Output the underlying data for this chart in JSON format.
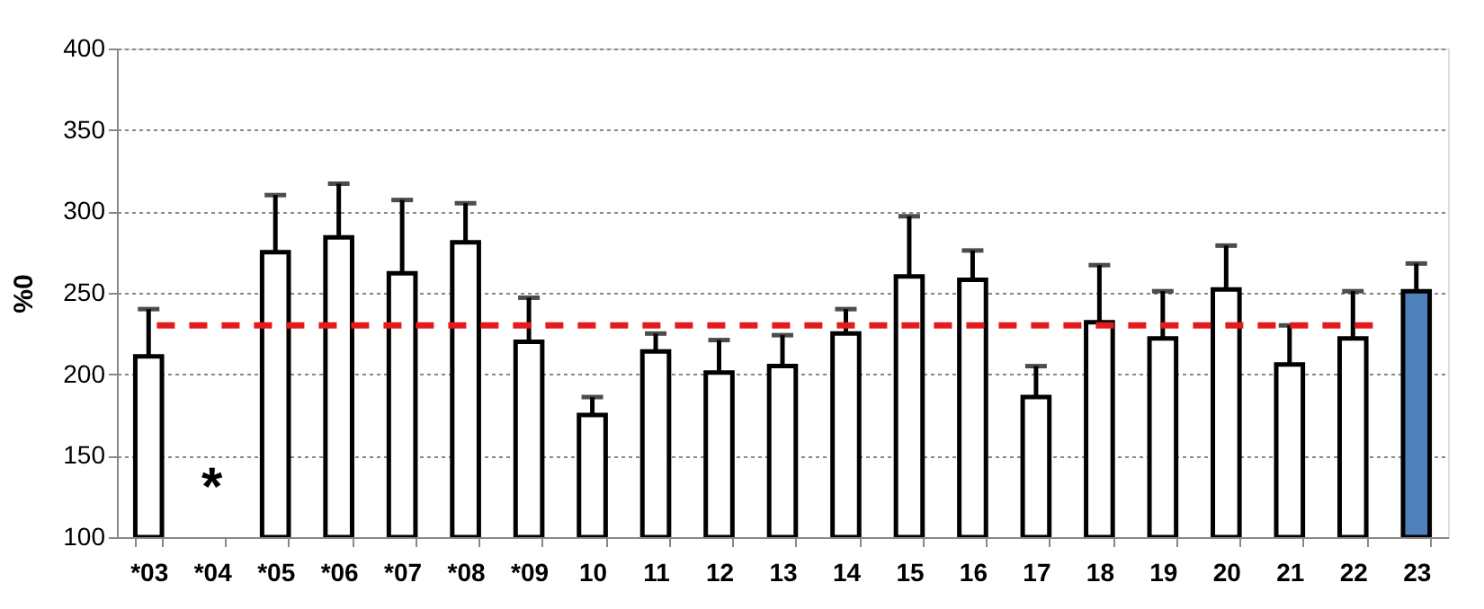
{
  "chart_data": {
    "type": "bar",
    "ylabel": "%0",
    "categories": [
      "*03",
      "*04",
      "*05",
      "*06",
      "*07",
      "*08",
      "*09",
      "10",
      "11",
      "12",
      "13",
      "14",
      "15",
      "16",
      "17",
      "18",
      "19",
      "20",
      "21",
      "22",
      "23"
    ],
    "values": [
      211,
      null,
      275,
      284,
      262,
      281,
      220,
      175,
      214,
      201,
      205,
      225,
      260,
      258,
      186,
      232,
      222,
      252,
      206,
      222,
      251
    ],
    "errors": [
      [
        211,
        240
      ],
      null,
      [
        275,
        310
      ],
      [
        284,
        317
      ],
      [
        262,
        307
      ],
      [
        281,
        305
      ],
      [
        220,
        247
      ],
      [
        175,
        186
      ],
      [
        214,
        225
      ],
      [
        201,
        221
      ],
      [
        205,
        224
      ],
      [
        225,
        240
      ],
      [
        260,
        297
      ],
      [
        258,
        276
      ],
      [
        186,
        205
      ],
      [
        232,
        267
      ],
      [
        222,
        251
      ],
      [
        252,
        279
      ],
      [
        206,
        230
      ],
      [
        222,
        251
      ],
      [
        251,
        268
      ]
    ],
    "colors": [
      "#ffffff",
      "#ffffff",
      "#ffffff",
      "#ffffff",
      "#ffffff",
      "#ffffff",
      "#ffffff",
      "#ffffff",
      "#ffffff",
      "#ffffff",
      "#ffffff",
      "#ffffff",
      "#ffffff",
      "#ffffff",
      "#ffffff",
      "#ffffff",
      "#ffffff",
      "#ffffff",
      "#ffffff",
      "#ffffff",
      "#4f81bd"
    ],
    "ylim": [
      100,
      400
    ],
    "yticks": [
      100,
      150,
      200,
      250,
      300,
      350,
      400
    ],
    "grid": "y",
    "ref_lines": [
      {
        "axis": "y",
        "value": 230,
        "label": null,
        "color": "#e41a1c",
        "line_style": "dashed"
      }
    ],
    "annotations": [
      "*"
    ]
  }
}
